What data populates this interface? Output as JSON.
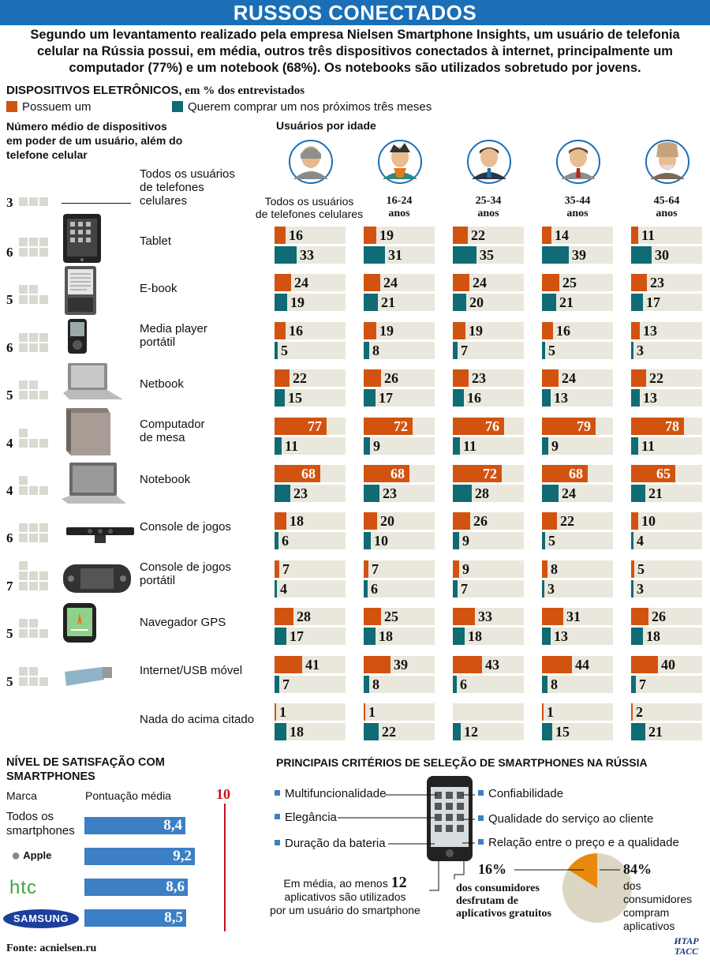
{
  "title": "RUSSOS CONECTADOS",
  "intro": "Segundo um levantamento realizado pela empresa Nielsen Smartphone Insights, um usuário de telefonia celular na Rússia possui, em média, outros três dispositivos conectados à internet, principalmente um computador (77%) e um notebook (68%). Os notebooks são utilizados sobretudo por jovens.",
  "devices_section": {
    "title_bold": "DISPOSITIVOS ELETRÔNICOS,",
    "title_rest": " em % dos entrevistados",
    "legend_own": "Possuem um",
    "legend_want": "Querem comprar um nos próximos três meses",
    "count_header": "Número médio de dispositivos em poder de um usuário, além do telefone celular",
    "age_header": "Usuários por idade"
  },
  "colors": {
    "own": "#d2530f",
    "want": "#0f6b74",
    "blue": "#1a6fb6",
    "cell": "#eae8dc"
  },
  "chart_data": {
    "type": "bar",
    "age_groups": [
      "Todos os usuários de telefones celulares",
      "16-24 anos",
      "25-34 anos",
      "35-44 anos",
      "45-64 anos"
    ],
    "age_groups_display": [
      [
        "Todos os usuários",
        "de telefones celulares"
      ],
      [
        "16-24",
        "anos"
      ],
      [
        "25-34",
        "anos"
      ],
      [
        "35-44",
        "anos"
      ],
      [
        "45-64",
        "anos"
      ]
    ],
    "series_names": [
      "Possuem um",
      "Querem comprar um nos próximos três meses"
    ],
    "all_users_row": {
      "label": "Todos os usuários de telefones celulares",
      "count": "3"
    },
    "devices": [
      {
        "name": "Tablet",
        "count": "6",
        "own": [
          16,
          19,
          22,
          14,
          11
        ],
        "want": [
          33,
          31,
          35,
          39,
          30
        ]
      },
      {
        "name": "E-book",
        "count": "5",
        "own": [
          24,
          24,
          24,
          25,
          23
        ],
        "want": [
          19,
          21,
          20,
          21,
          17
        ]
      },
      {
        "name": "Media player portátil",
        "count": "6",
        "own": [
          16,
          19,
          19,
          16,
          13
        ],
        "want": [
          5,
          8,
          7,
          5,
          3
        ]
      },
      {
        "name": "Netbook",
        "count": "5",
        "own": [
          22,
          26,
          23,
          24,
          22
        ],
        "want": [
          15,
          17,
          16,
          13,
          13
        ]
      },
      {
        "name": "Computador de mesa",
        "count": "4",
        "own": [
          77,
          72,
          76,
          79,
          78
        ],
        "want": [
          11,
          9,
          11,
          9,
          11
        ]
      },
      {
        "name": "Notebook",
        "count": "4",
        "own": [
          68,
          68,
          72,
          68,
          65
        ],
        "want": [
          23,
          23,
          28,
          24,
          21
        ]
      },
      {
        "name": "Console de jogos",
        "count": "6",
        "own": [
          18,
          20,
          26,
          22,
          10
        ],
        "want": [
          6,
          10,
          9,
          5,
          4
        ]
      },
      {
        "name": "Console de jogos portátil",
        "count": "7",
        "own": [
          7,
          7,
          9,
          8,
          5
        ],
        "want": [
          4,
          6,
          7,
          3,
          3
        ]
      },
      {
        "name": "Navegador GPS",
        "count": "5",
        "own": [
          28,
          25,
          33,
          31,
          26
        ],
        "want": [
          17,
          18,
          18,
          13,
          18
        ]
      },
      {
        "name": "Internet/USB móvel",
        "count": "5",
        "own": [
          41,
          39,
          43,
          44,
          40
        ],
        "want": [
          7,
          8,
          6,
          8,
          7
        ]
      },
      {
        "name": "Nada do acima citado",
        "count": "",
        "own": [
          1,
          1,
          null,
          1,
          2
        ],
        "want": [
          18,
          22,
          12,
          15,
          21
        ]
      }
    ]
  },
  "device_labels": [
    [
      "Tablet"
    ],
    [
      "E-book"
    ],
    [
      "Media player",
      "portátil"
    ],
    [
      "Netbook"
    ],
    [
      "Computador",
      "de mesa"
    ],
    [
      "Notebook"
    ],
    [
      "Console de jogos"
    ],
    [
      "Console de jogos",
      "portátil"
    ],
    [
      "Navegador GPS"
    ],
    [
      "Internet/USB móvel"
    ],
    [
      "Nada do acima citado"
    ]
  ],
  "all_users_label": [
    "Todos os usuários",
    "de telefones",
    "celulares"
  ],
  "satisfaction": {
    "title": "NÍVEL DE SATISFAÇÃO COM SMARTPHONES",
    "col_brand": "Marca",
    "col_score": "Pontuação média",
    "max_label": "10",
    "max_value": 10,
    "rows": [
      {
        "brand": "Todos os smartphones",
        "score": 8.4,
        "label": "8,4"
      },
      {
        "brand": "Apple",
        "score": 9.2,
        "label": "9,2"
      },
      {
        "brand": "htc",
        "score": 8.6,
        "label": "8,6"
      },
      {
        "brand": "SAMSUNG",
        "score": 8.5,
        "label": "8,5"
      }
    ],
    "first_brand_lines": [
      "Todos os",
      "smartphones"
    ]
  },
  "criteria": {
    "title": "PRINCIPAIS CRITÉRIOS DE SELEÇÃO DE SMARTPHONES NA RÚSSIA",
    "left": [
      "Multifuncionalidade",
      "Elegância",
      "Duração da bateria"
    ],
    "right": [
      "Confiabilidade",
      "Qualidade do serviço ao cliente",
      "Relação entre o preço e a qualidade"
    ],
    "apps_text_1": "Em média, ao menos ",
    "apps_number": "12",
    "apps_text_2": "aplicativos são utilizados",
    "apps_text_3": "por um usuário do smartphone"
  },
  "apps_pie": {
    "free_pct": 16,
    "paid_pct": 84,
    "free_label": "16%",
    "free_text": [
      "dos consumidores",
      "desfrutam de",
      "aplicativos gratuitos"
    ],
    "paid_label": "84%",
    "paid_text": [
      "dos",
      "consumidores",
      "compram",
      "aplicativos"
    ],
    "colors": {
      "free": "#e8890c",
      "paid": "#dcd6c4"
    }
  },
  "source": "Fonte: acnielsen.ru",
  "logo": [
    "ИТАР",
    "ТАСС"
  ]
}
